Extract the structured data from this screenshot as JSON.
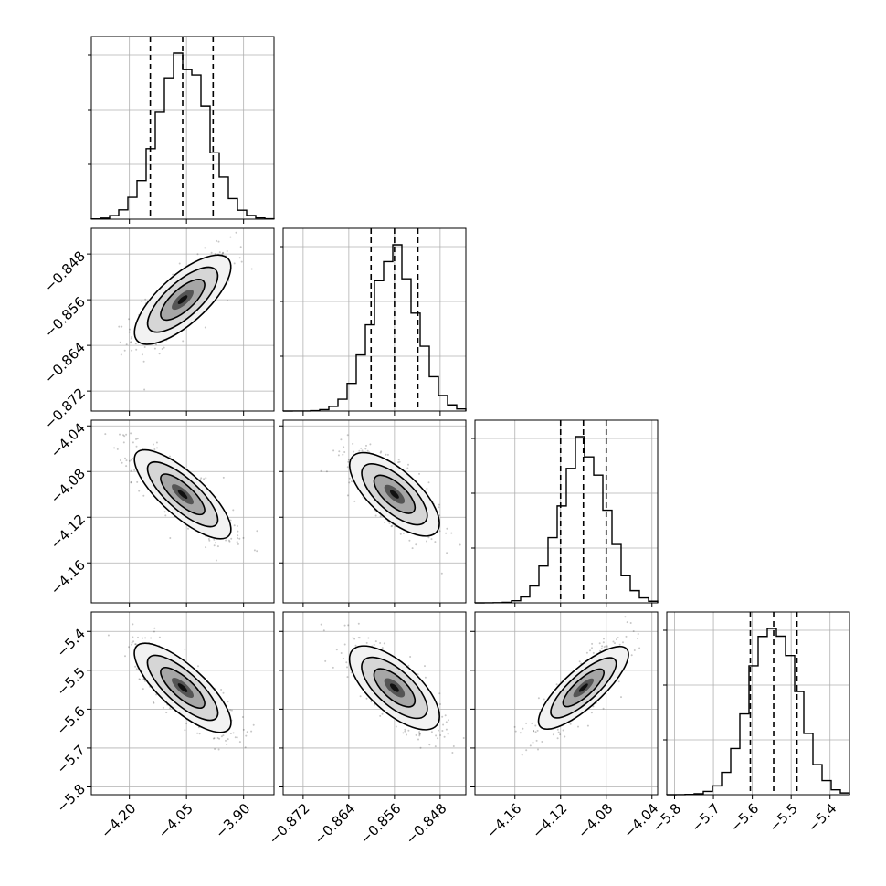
{
  "chart_data": {
    "type": "corner",
    "params": [
      {
        "range": [
          -4.3,
          -3.82
        ],
        "ticks": [
          -4.2,
          -4.05,
          -3.9
        ],
        "tick_labels": [
          "−4.20",
          "−4.05",
          "−3.90"
        ],
        "mean": -4.06,
        "sigma": 0.065,
        "quantiles": [
          -4.145,
          -4.06,
          -3.98
        ]
      },
      {
        "range": [
          -0.8755,
          -0.8435
        ],
        "ticks": [
          -0.872,
          -0.864,
          -0.856,
          -0.848
        ],
        "tick_labels": [
          "−0.872",
          "−0.864",
          "−0.856",
          "−0.848"
        ],
        "mean": -0.856,
        "sigma": 0.004,
        "quantiles": [
          -0.8601,
          -0.856,
          -0.8519
        ]
      },
      {
        "range": [
          -4.195,
          -4.035
        ],
        "ticks": [
          -4.16,
          -4.12,
          -4.08,
          -4.04
        ],
        "tick_labels": [
          "−4.16",
          "−4.12",
          "−4.08",
          "−4.04"
        ],
        "mean": -4.1,
        "sigma": 0.02,
        "quantiles": [
          -4.12,
          -4.1,
          -4.08
        ]
      },
      {
        "range": [
          -5.82,
          -5.35
        ],
        "ticks": [
          -5.8,
          -5.7,
          -5.6,
          -5.5,
          -5.4
        ],
        "tick_labels": [
          "−5.8",
          "−5.7",
          "−5.6",
          "−5.5",
          "−5.4"
        ],
        "mean": -5.545,
        "sigma": 0.06,
        "quantiles": [
          -5.605,
          -5.545,
          -5.485
        ]
      }
    ],
    "correlations": [
      [
        1.0,
        0.75,
        -0.8,
        -0.8
      ],
      [
        0.75,
        1.0,
        -0.75,
        -0.75
      ],
      [
        -0.8,
        -0.75,
        1.0,
        0.85
      ],
      [
        -0.8,
        -0.75,
        0.85,
        1.0
      ]
    ],
    "histogram_bins": 20,
    "grid": true,
    "colors": {
      "axes": "#000000",
      "grid": "#b0b0b0",
      "points": "#000000"
    }
  }
}
